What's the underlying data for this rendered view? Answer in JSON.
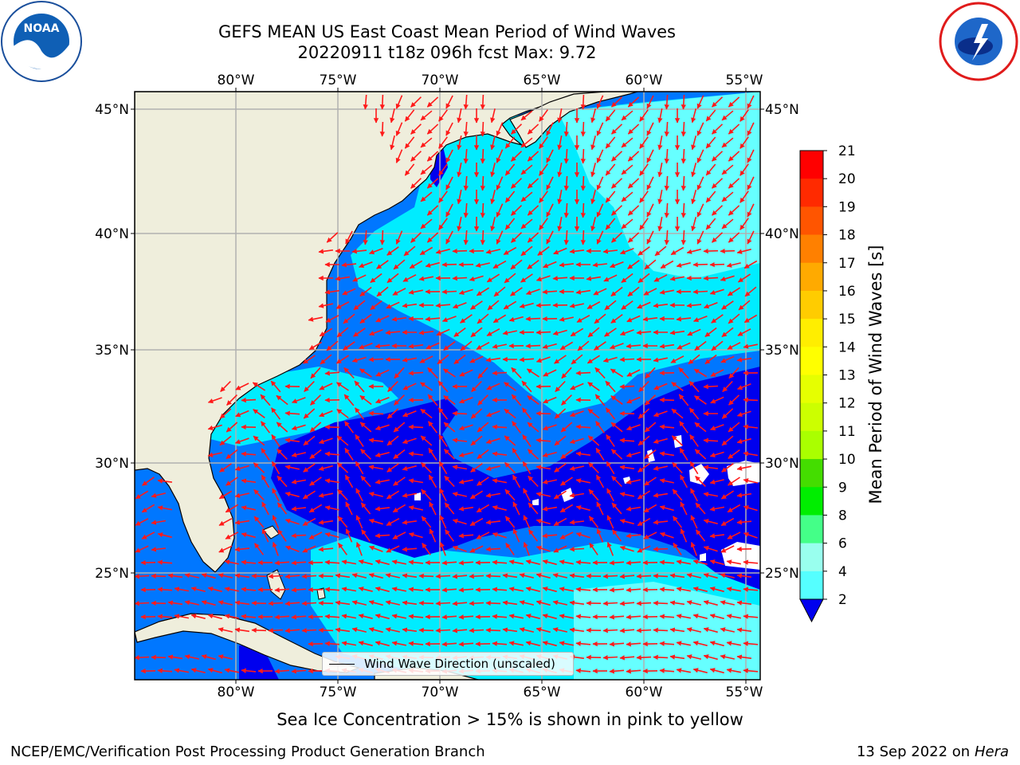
{
  "header": {
    "title": "GEFS MEAN US East Coast Mean Period of Wind Waves",
    "subtitle": "20220911 t18z 096h fcst   Max: 9.72"
  },
  "logos": {
    "left": "noaa-logo",
    "right": "nws-logo"
  },
  "map": {
    "lon_ticks_top": [
      "80°W",
      "75°W",
      "70°W",
      "65°W",
      "60°W",
      "55°W"
    ],
    "lon_ticks_bottom": [
      "80°W",
      "75°W",
      "70°W",
      "65°W",
      "60°W",
      "55°W"
    ],
    "lat_ticks_left": [
      "45°N",
      "40°N",
      "35°N",
      "30°N",
      "25°N"
    ],
    "lat_ticks_right": [
      "45°N",
      "40°N",
      "35°N",
      "30°N",
      "25°N"
    ],
    "legend_label": "Wind Wave Direction (unscaled)",
    "colors": {
      "land": "#efeedc",
      "ocean_2_4": "#0077ff",
      "ocean_4_6": "#00ecff",
      "ocean_6_8": "#66ffff",
      "ocean_low": "#0000ee",
      "arrow": "#ff1a1a"
    }
  },
  "colorbar": {
    "label": "Mean Period of Wind Waves [s]",
    "ticks": [
      "21",
      "20",
      "19",
      "18",
      "17",
      "16",
      "15",
      "14",
      "13",
      "12",
      "11",
      "10",
      "9",
      "8",
      "6",
      "4",
      "2"
    ],
    "colors": [
      "#ff0000",
      "#ff2a00",
      "#ff5500",
      "#ff8000",
      "#ffaa00",
      "#ffcc00",
      "#ffee00",
      "#ffff00",
      "#e6ff00",
      "#ccff00",
      "#aaff00",
      "#44dd00",
      "#00ee00",
      "#44ff88",
      "#99ffee",
      "#55ffff",
      "#00eeff",
      "#0077ff",
      "#0000ee"
    ]
  },
  "notes": {
    "sea_ice": "Sea Ice Concentration > 15% is shown in pink to yellow"
  },
  "footer": {
    "left": "NCEP/EMC/Verification Post Processing Product Generation Branch",
    "date": "13 Sep 2022 on",
    "host": "Hera"
  }
}
